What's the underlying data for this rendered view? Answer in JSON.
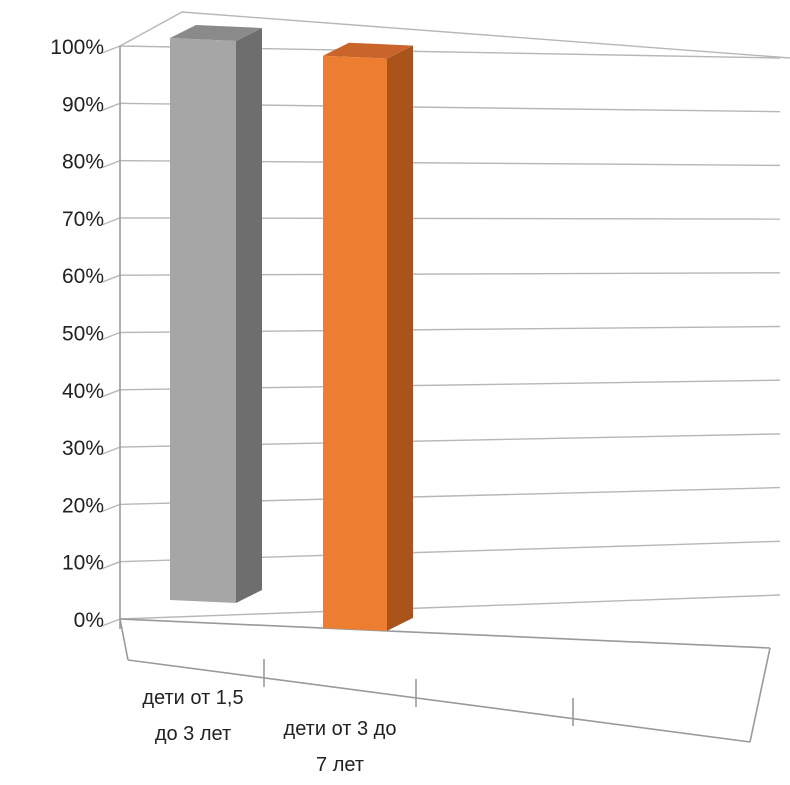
{
  "chart_data": {
    "type": "bar",
    "style": "3d-column",
    "categories": [
      [
        "дети от 1,5",
        "до 3 лет"
      ],
      [
        "дети от 3 до",
        "7 лет"
      ]
    ],
    "values": [
      100,
      97
    ],
    "colors": [
      "#a6a6a6",
      "#ed7d31"
    ],
    "side_colors": [
      "#6e6e6e",
      "#a9531a"
    ],
    "top_colors": [
      "#8a8a8a",
      "#c9652a"
    ],
    "y_ticks": [
      "0%",
      "10%",
      "20%",
      "30%",
      "40%",
      "50%",
      "60%",
      "70%",
      "80%",
      "90%",
      "100%"
    ],
    "ylim": [
      0,
      100
    ],
    "grid": true,
    "legend": "none"
  }
}
